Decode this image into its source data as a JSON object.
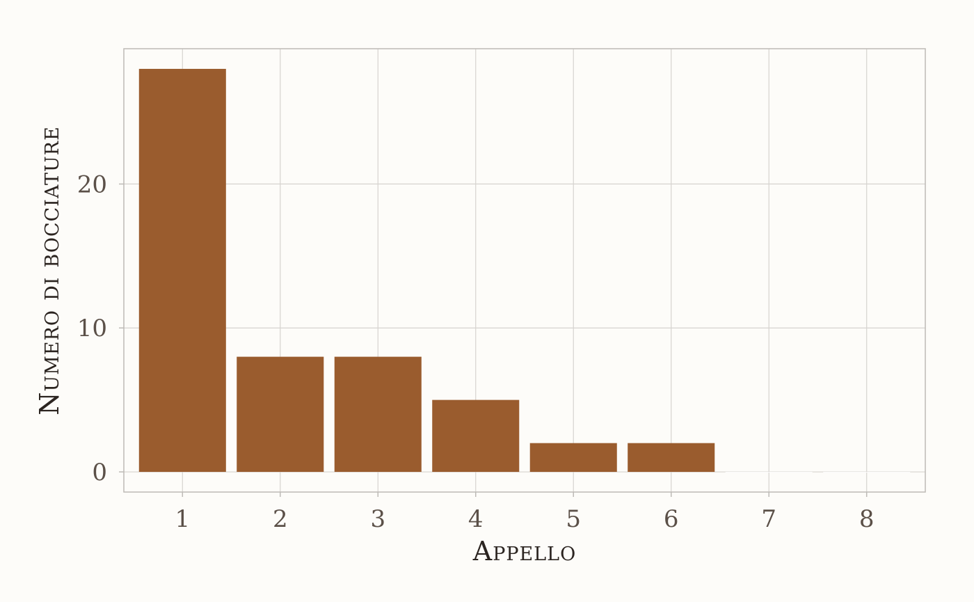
{
  "chart_data": {
    "type": "bar",
    "title": "",
    "xlabel": "Appello",
    "ylabel": "Numero di bocciature",
    "categories": [
      "1",
      "2",
      "3",
      "4",
      "5",
      "6",
      "7",
      "8"
    ],
    "values": [
      28,
      8,
      8,
      5,
      2,
      2,
      0,
      0
    ],
    "ylim": [
      -1.4,
      29.4
    ],
    "yticks": [
      0,
      10,
      20
    ],
    "ytick_labels": [
      "0",
      "10",
      "20"
    ],
    "grid": true,
    "bar_color": "#9a5c2e",
    "legend": "none"
  }
}
